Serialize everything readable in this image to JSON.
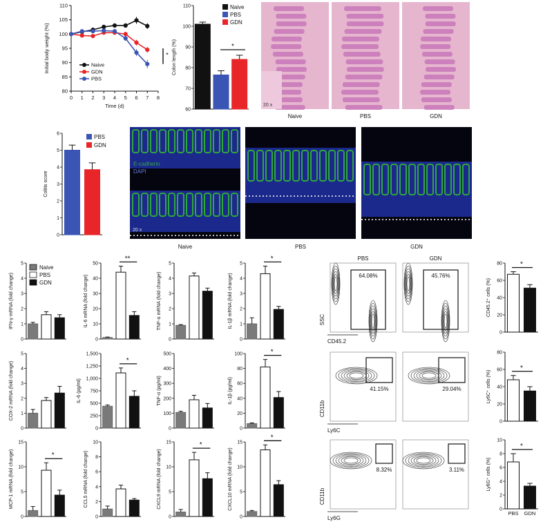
{
  "colors": {
    "naive": "#111111",
    "pbs": "#3a55b4",
    "gdn": "#e8262a",
    "gray": "#7a7a7a",
    "white": "#ffffff",
    "black": "#111111",
    "he_bg": "#e6b6cf",
    "he_tissue": "#c878b8",
    "ecad": "#2fa83c",
    "dapi": "#1f2e9a"
  },
  "panelA": {
    "ylabel": "Initial body weight (%)",
    "xlabel": "Time (d)",
    "yticks": [
      "80",
      "85",
      "90",
      "95",
      "100",
      "105",
      "110"
    ],
    "xticks": [
      "0",
      "1",
      "2",
      "3",
      "4",
      "5",
      "6",
      "7",
      "8"
    ],
    "legend": [
      "Naive",
      "GDN",
      "PBS"
    ],
    "sig": "*",
    "series": [
      {
        "name": "Naive",
        "color": "naive",
        "x": [
          0,
          1,
          2,
          3,
          4,
          5,
          6,
          7
        ],
        "y": [
          100,
          100.8,
          101.5,
          102.5,
          103,
          103,
          104.8,
          102.8
        ]
      },
      {
        "name": "GDN",
        "color": "gdn",
        "x": [
          0,
          1,
          2,
          3,
          4,
          5,
          6,
          7
        ],
        "y": [
          100,
          99.5,
          99.3,
          100.5,
          100.5,
          100,
          97,
          94.5
        ]
      },
      {
        "name": "PBS",
        "color": "pbs",
        "x": [
          0,
          1,
          2,
          3,
          4,
          5,
          6,
          7
        ],
        "y": [
          100,
          101,
          101,
          101.2,
          101,
          98.5,
          93.5,
          89.5
        ]
      }
    ]
  },
  "panelB": {
    "ylabel": "Colon length (%)",
    "yticks": [
      "60",
      "70",
      "80",
      "90",
      "100",
      "110"
    ],
    "legend": [
      "Naive",
      "PBS",
      "GDN"
    ],
    "sig": "*",
    "bars": [
      {
        "name": "Naive",
        "color": "naive",
        "value": 101,
        "err": 1
      },
      {
        "name": "PBS",
        "color": "pbs",
        "value": 76.5,
        "err": 2
      },
      {
        "name": "GDN",
        "color": "gdn",
        "value": 84,
        "err": 2
      }
    ]
  },
  "histo": {
    "labels": [
      "Naive",
      "PBS",
      "GDN"
    ],
    "scale": "20 x"
  },
  "panelC": {
    "ylabel": "Colitis score",
    "yticks": [
      "0",
      "1",
      "2",
      "3",
      "4",
      "5",
      "6"
    ],
    "legend": [
      "PBS",
      "GDN"
    ],
    "bars": [
      {
        "name": "PBS",
        "color": "pbs",
        "value": 5,
        "err": 0.3
      },
      {
        "name": "GDN",
        "color": "gdn",
        "value": 3.85,
        "err": 0.4
      }
    ]
  },
  "ifimg": {
    "labels": [
      "Naive",
      "PBS",
      "GDN"
    ],
    "ecad": "E-cadherin",
    "dapi": "DAPI",
    "scale": "20 x"
  },
  "cytokines": [
    {
      "ylabel": "IFN-γ mRNA (fold change)",
      "yticks": [
        "0",
        "1",
        "2",
        "3",
        "4",
        "5"
      ],
      "ymax": 5,
      "values": [
        1,
        1.6,
        1.4
      ],
      "errs": [
        0.1,
        0.2,
        0.2
      ],
      "sig": "",
      "legend": [
        "Naive",
        "PBS",
        "GDN"
      ]
    },
    {
      "ylabel": "IL-6 mRNA (fold change)",
      "yticks": [
        "0",
        "10",
        "20",
        "30",
        "40",
        "50"
      ],
      "ymax": 50,
      "values": [
        1,
        44,
        15.5
      ],
      "errs": [
        0.3,
        4,
        2.5
      ],
      "sig": "**"
    },
    {
      "ylabel": "TNF-α mRNA (fold change)",
      "yticks": [
        "0",
        "1",
        "2",
        "3",
        "4",
        "5"
      ],
      "ymax": 5,
      "values": [
        0.9,
        4.15,
        3.15
      ],
      "errs": [
        0.05,
        0.2,
        0.2
      ],
      "sig": ""
    },
    {
      "ylabel": "IL-1β mRNA (fold change)",
      "yticks": [
        "0",
        "1",
        "2",
        "3",
        "4",
        "5"
      ],
      "ymax": 5,
      "values": [
        1,
        4.3,
        1.95
      ],
      "errs": [
        0.4,
        0.5,
        0.2
      ],
      "sig": "*"
    },
    {
      "ylabel": "COX-2 mRNA (fold change)",
      "yticks": [
        "0",
        "1",
        "2",
        "3",
        "4",
        "5"
      ],
      "ymax": 5,
      "values": [
        1,
        1.85,
        2.35
      ],
      "errs": [
        0.25,
        0.2,
        0.45
      ],
      "sig": ""
    },
    {
      "ylabel": "IL-6 (pg/ml)",
      "yticks": [
        "0",
        "250",
        "500",
        "750",
        "1,000",
        "1,250",
        "1,500"
      ],
      "ymax": 1500,
      "values": [
        440,
        1110,
        640
      ],
      "errs": [
        25,
        100,
        110
      ],
      "sig": "*"
    },
    {
      "ylabel": "TNF-α (pg/ml)",
      "yticks": [
        "0",
        "100",
        "200",
        "300",
        "400",
        "500"
      ],
      "ymax": 500,
      "values": [
        105,
        190,
        135
      ],
      "errs": [
        8,
        30,
        30
      ],
      "sig": ""
    },
    {
      "ylabel": "IL-1β (pg/ml)",
      "yticks": [
        "0",
        "20",
        "40",
        "60",
        "80",
        "100"
      ],
      "ymax": 100,
      "values": [
        6,
        82,
        41
      ],
      "errs": [
        1,
        10,
        8
      ],
      "sig": "*"
    },
    {
      "ylabel": "MCP-1 mRNA (fold change)",
      "yticks": [
        "0",
        "5",
        "10",
        "15"
      ],
      "ymax": 15,
      "values": [
        1.2,
        9.3,
        4.3
      ],
      "errs": [
        0.8,
        1.5,
        1
      ],
      "sig": "*"
    },
    {
      "ylabel": "CCL5 mRNA (fold change)",
      "yticks": [
        "0",
        "2",
        "4",
        "6",
        "8",
        "10"
      ],
      "ymax": 10,
      "values": [
        1,
        3.7,
        2.2
      ],
      "errs": [
        0.4,
        0.5,
        0.2
      ],
      "sig": ""
    },
    {
      "ylabel": "CXCL9 mRNA (fold change)",
      "yticks": [
        "0",
        "5",
        "10",
        "15"
      ],
      "ymax": 15,
      "values": [
        0.9,
        11.4,
        7.6
      ],
      "errs": [
        0.5,
        1.5,
        1.2
      ],
      "sig": "*"
    },
    {
      "ylabel": "CXCL10 mRNA (fold change)",
      "yticks": [
        "0",
        "5",
        "10",
        "15"
      ],
      "ymax": 15,
      "values": [
        1,
        13.4,
        6.4
      ],
      "errs": [
        0.2,
        1,
        0.8
      ],
      "sig": "*"
    }
  ],
  "flow": {
    "cols": [
      "PBS",
      "GDN"
    ],
    "rows": [
      {
        "xlabel": "CD45.2",
        "ylabel": "SSC",
        "gates": [
          "64.08%",
          "45.76%"
        ]
      },
      {
        "xlabel": "Ly6C",
        "ylabel": "CD11b",
        "gates": [
          "41.15%",
          "29.04%"
        ]
      },
      {
        "xlabel": "Ly6G",
        "ylabel": "CD11b",
        "gates": [
          "8.32%",
          "3.11%"
        ]
      }
    ]
  },
  "flowbars": [
    {
      "ylabel": "CD45.2⁺ cells (%)",
      "yticks": [
        "0",
        "20",
        "40",
        "60",
        "80"
      ],
      "ymax": 80,
      "values": [
        67,
        51
      ],
      "errs": [
        3,
        4
      ],
      "sig": "*"
    },
    {
      "ylabel": "Ly6C⁺ cells (%)",
      "yticks": [
        "0",
        "20",
        "40",
        "60",
        "80"
      ],
      "ymax": 80,
      "values": [
        48,
        35
      ],
      "errs": [
        5,
        5
      ],
      "sig": "*"
    },
    {
      "ylabel": "Ly6G⁺ cells (%)",
      "yticks": [
        "0",
        "2",
        "4",
        "6",
        "8",
        "10"
      ],
      "ymax": 10,
      "values": [
        6.8,
        3.3
      ],
      "errs": [
        1.2,
        0.4
      ],
      "sig": "*",
      "xticks": [
        "PBS",
        "GDN"
      ]
    }
  ],
  "chart_data": [
    {
      "type": "line",
      "xlabel": "Time (d)",
      "ylabel": "Initial body weight (%)",
      "ylim": [
        80,
        110
      ],
      "x": [
        0,
        1,
        2,
        3,
        4,
        5,
        6,
        7
      ],
      "series": [
        {
          "name": "Naive",
          "values": [
            100,
            100.8,
            101.5,
            102.5,
            103,
            103,
            104.8,
            102.8
          ]
        },
        {
          "name": "GDN",
          "values": [
            100,
            99.5,
            99.3,
            100.5,
            100.5,
            100,
            97,
            94.5
          ]
        },
        {
          "name": "PBS",
          "values": [
            100,
            101,
            101,
            101.2,
            101,
            98.5,
            93.5,
            89.5
          ]
        }
      ]
    },
    {
      "type": "bar",
      "ylabel": "Colon length (%)",
      "ylim": [
        60,
        110
      ],
      "categories": [
        "Naive",
        "PBS",
        "GDN"
      ],
      "values": [
        101,
        76.5,
        84
      ]
    },
    {
      "type": "bar",
      "ylabel": "Colitis score",
      "ylim": [
        0,
        6
      ],
      "categories": [
        "PBS",
        "GDN"
      ],
      "values": [
        5,
        3.85
      ]
    },
    {
      "type": "bar",
      "ylabel": "IL-6 (pg/ml)",
      "categories": [
        "Naive",
        "PBS",
        "GDN"
      ],
      "values": [
        440,
        1110,
        640
      ]
    },
    {
      "type": "bar",
      "ylabel": "Ly6G⁺ cells (%)",
      "categories": [
        "PBS",
        "GDN"
      ],
      "values": [
        6.8,
        3.3
      ]
    }
  ]
}
